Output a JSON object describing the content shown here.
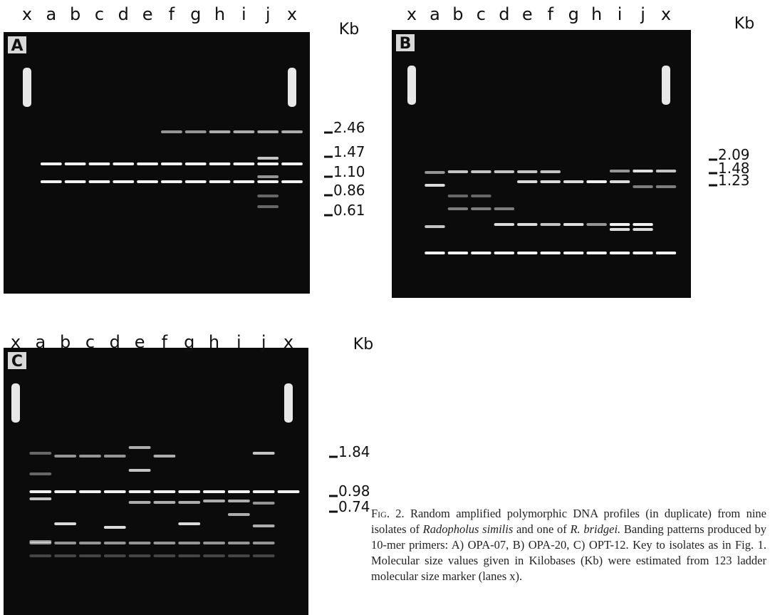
{
  "panels": [
    {
      "letter": "A",
      "lanes": [
        "x",
        "a",
        "b",
        "c",
        "d",
        "e",
        "f",
        "g",
        "h",
        "i",
        "j",
        "x"
      ],
      "unit": "Kb",
      "sizes": [
        "2.46",
        "1.47",
        "1.10",
        "0.86",
        "0.61"
      ]
    },
    {
      "letter": "B",
      "lanes": [
        "x",
        "a",
        "b",
        "c",
        "d",
        "e",
        "f",
        "g",
        "h",
        "i",
        "j",
        "x"
      ],
      "unit": "Kb",
      "sizes": [
        "2.09",
        "1.48",
        "1.23"
      ]
    },
    {
      "letter": "C",
      "lanes": [
        "x",
        "a",
        "b",
        "c",
        "d",
        "e",
        "f",
        "g",
        "h",
        "i",
        "j",
        "x"
      ],
      "unit": "Kb",
      "sizes": [
        "1.84",
        "0.98",
        "0.74"
      ]
    }
  ],
  "caption": {
    "label": "Fig. 2.",
    "text1": " Random amplified polymorphic DNA profiles (in duplicate) from nine isolates of ",
    "species1": "Radopholus similis",
    "text2": " and one of ",
    "species2": "R. bridgei.",
    "text3": " Banding patterns produced by 10-mer primers: A) OPA-07, B) OPA-20, C) OPT-12. Key to isolates as in Fig. 1. Molecular size values given in Kilobases (Kb) were estimated from 123 ladder molecular size marker (lanes x)."
  }
}
